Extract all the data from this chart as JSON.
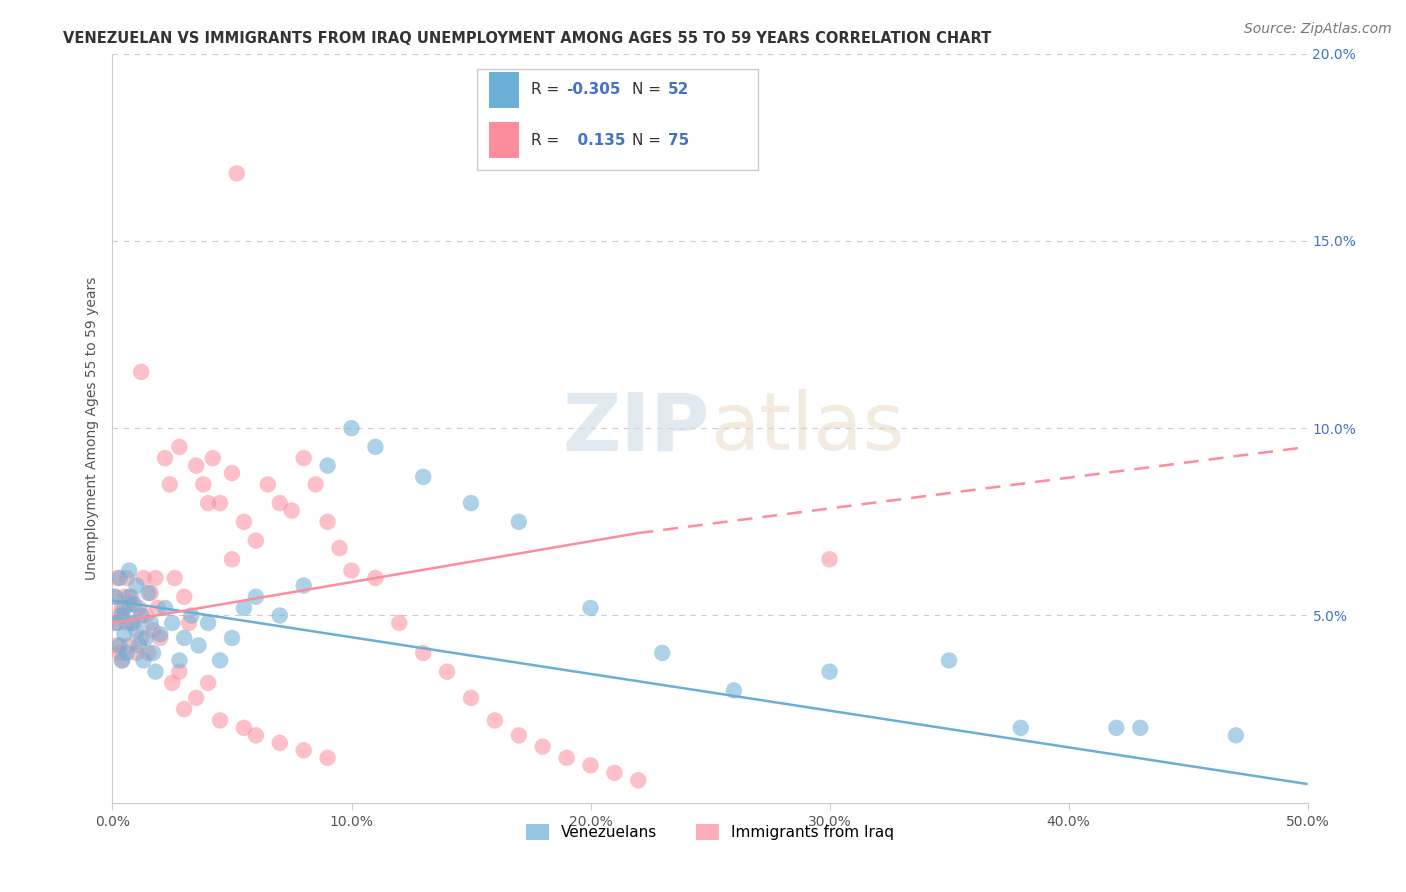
{
  "title": "VENEZUELAN VS IMMIGRANTS FROM IRAQ UNEMPLOYMENT AMONG AGES 55 TO 59 YEARS CORRELATION CHART",
  "source": "Source: ZipAtlas.com",
  "ylabel": "Unemployment Among Ages 55 to 59 years",
  "xlim": [
    0,
    0.5
  ],
  "ylim": [
    0,
    0.2
  ],
  "background_color": "#ffffff",
  "venezuelan_color": "#6baed6",
  "iraq_color": "#fc8d9b",
  "venezuelan_R": -0.305,
  "venezuelan_N": 52,
  "iraq_R": 0.135,
  "iraq_N": 75,
  "title_fontsize": 10.5,
  "label_fontsize": 10,
  "tick_fontsize": 10,
  "source_fontsize": 10,
  "watermark_text": "ZIPatlas",
  "legend_items": [
    {
      "label_r": "R = ",
      "val_r": "-0.305",
      "label_n": "N = ",
      "val_n": "52"
    },
    {
      "label_r": "R = ",
      "val_r": "  0.135",
      "label_n": "N = ",
      "val_n": "75"
    }
  ],
  "bottom_legend": [
    "Venezuelans",
    "Immigrants from Iraq"
  ],
  "ven_line": [
    0.054,
    0.005
  ],
  "iraq_line_solid": [
    0.048,
    0.072
  ],
  "iraq_line_dash": [
    0.048,
    0.095
  ]
}
